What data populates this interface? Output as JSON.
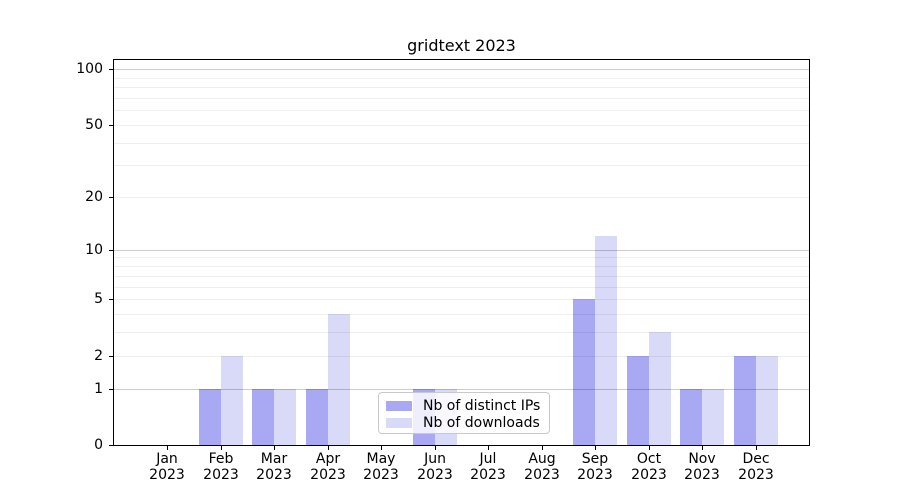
{
  "chart_data": {
    "type": "bar",
    "title": "gridtext 2023",
    "categories": [
      "Jan 2023",
      "Feb 2023",
      "Mar 2023",
      "Apr 2023",
      "May 2023",
      "Jun 2023",
      "Jul 2023",
      "Aug 2023",
      "Sep 2023",
      "Oct 2023",
      "Nov 2023",
      "Dec 2023"
    ],
    "series": [
      {
        "name": "Nb of distinct IPs",
        "color": "#a8a8f3",
        "values": [
          0,
          1,
          1,
          1,
          0,
          1,
          0,
          0,
          5,
          2,
          1,
          2
        ]
      },
      {
        "name": "Nb of downloads",
        "color": "#d9d9f8",
        "values": [
          0,
          2,
          1,
          4,
          0,
          1,
          0,
          0,
          12,
          3,
          1,
          2
        ]
      }
    ],
    "y_axis": {
      "scale": "log1p",
      "tick_values": [
        0,
        1,
        2,
        5,
        10,
        20,
        50,
        100
      ],
      "major_gridlines": [
        1,
        10,
        100
      ],
      "minor_gridlines": [
        2,
        3,
        4,
        5,
        6,
        7,
        8,
        9,
        20,
        30,
        40,
        50,
        60,
        70,
        80,
        90
      ],
      "ylim": [
        0,
        112
      ]
    },
    "x_axis": {
      "label_lines": 2
    },
    "legend": {
      "position": "lower-center",
      "entries": [
        "Nb of distinct IPs",
        "Nb of downloads"
      ]
    },
    "grid": true
  }
}
